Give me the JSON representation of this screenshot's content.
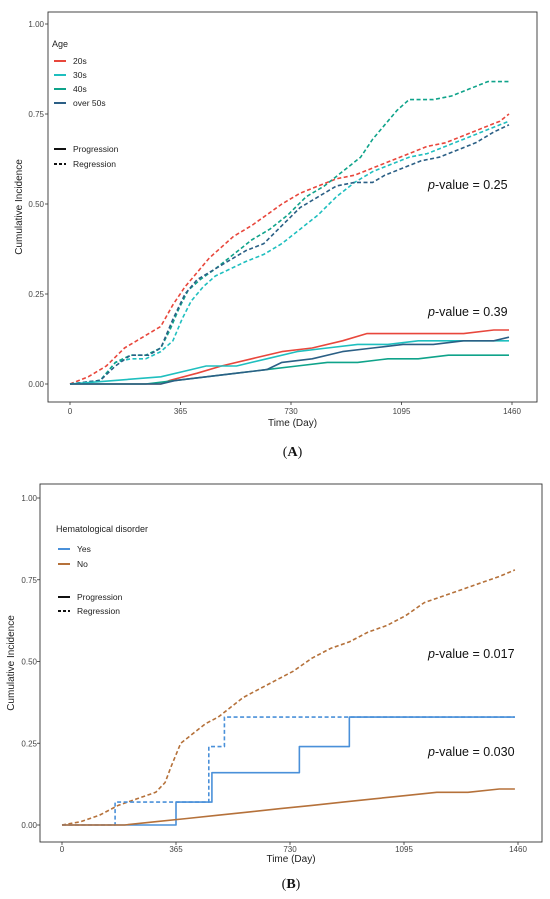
{
  "chart_data": [
    {
      "type": "line",
      "panel_label": "A",
      "xlabel": "Time (Day)",
      "ylabel": "Cumulative Incidence",
      "xlim": [
        0,
        1460
      ],
      "ylim": [
        0,
        1
      ],
      "xticks": [
        "0",
        "365",
        "730",
        "1095",
        "1460"
      ],
      "yticks": [
        "0.00",
        "0.25",
        "0.50",
        "0.75",
        "1.00"
      ],
      "grid": false,
      "legend": {
        "placement": "top-left",
        "title": "Age",
        "groups": [
          {
            "name": "20s",
            "color": "#e8473c"
          },
          {
            "name": "30s",
            "color": "#1fbfbf"
          },
          {
            "name": "40s",
            "color": "#0fa38a"
          },
          {
            "name": "over 50s",
            "color": "#2b5f85"
          }
        ],
        "linetypes": [
          {
            "name": "Progression",
            "dash": "solid"
          },
          {
            "name": "Regression",
            "dash": "dashed"
          }
        ]
      },
      "annotations": [
        {
          "text_italic": "p",
          "text_rest": "-value = 0.25",
          "x": 1300,
          "y": 0.55
        },
        {
          "text_italic": "p",
          "text_rest": "-value = 0.39",
          "x": 1300,
          "y": 0.2
        }
      ],
      "series": [
        {
          "group": "20s",
          "type": "Regression",
          "color": "#e8473c",
          "dash": "dashed",
          "points": [
            [
              0,
              0
            ],
            [
              60,
              0.02
            ],
            [
              120,
              0.05
            ],
            [
              180,
              0.1
            ],
            [
              240,
              0.13
            ],
            [
              300,
              0.16
            ],
            [
              340,
              0.22
            ],
            [
              380,
              0.27
            ],
            [
              420,
              0.31
            ],
            [
              460,
              0.35
            ],
            [
              500,
              0.38
            ],
            [
              540,
              0.41
            ],
            [
              600,
              0.44
            ],
            [
              650,
              0.47
            ],
            [
              700,
              0.5
            ],
            [
              760,
              0.53
            ],
            [
              820,
              0.55
            ],
            [
              880,
              0.57
            ],
            [
              940,
              0.58
            ],
            [
              1000,
              0.6
            ],
            [
              1060,
              0.62
            ],
            [
              1120,
              0.64
            ],
            [
              1180,
              0.66
            ],
            [
              1240,
              0.67
            ],
            [
              1300,
              0.69
            ],
            [
              1360,
              0.71
            ],
            [
              1420,
              0.73
            ],
            [
              1450,
              0.75
            ]
          ]
        },
        {
          "group": "30s",
          "type": "Regression",
          "color": "#1fbfbf",
          "dash": "dashed",
          "points": [
            [
              0,
              0
            ],
            [
              100,
              0.01
            ],
            [
              150,
              0.06
            ],
            [
              200,
              0.07
            ],
            [
              250,
              0.07
            ],
            [
              300,
              0.09
            ],
            [
              340,
              0.12
            ],
            [
              370,
              0.18
            ],
            [
              400,
              0.23
            ],
            [
              440,
              0.27
            ],
            [
              480,
              0.3
            ],
            [
              530,
              0.32
            ],
            [
              580,
              0.34
            ],
            [
              640,
              0.36
            ],
            [
              700,
              0.39
            ],
            [
              760,
              0.43
            ],
            [
              820,
              0.47
            ],
            [
              880,
              0.52
            ],
            [
              940,
              0.56
            ],
            [
              1000,
              0.59
            ],
            [
              1060,
              0.61
            ],
            [
              1120,
              0.63
            ],
            [
              1180,
              0.64
            ],
            [
              1240,
              0.66
            ],
            [
              1300,
              0.68
            ],
            [
              1360,
              0.7
            ],
            [
              1420,
              0.72
            ],
            [
              1450,
              0.73
            ]
          ]
        },
        {
          "group": "40s",
          "type": "Regression",
          "color": "#0fa38a",
          "dash": "dashed",
          "points": [
            [
              0,
              0
            ],
            [
              100,
              0.01
            ],
            [
              150,
              0.06
            ],
            [
              200,
              0.08
            ],
            [
              250,
              0.08
            ],
            [
              300,
              0.1
            ],
            [
              330,
              0.15
            ],
            [
              360,
              0.21
            ],
            [
              390,
              0.26
            ],
            [
              430,
              0.29
            ],
            [
              480,
              0.32
            ],
            [
              540,
              0.36
            ],
            [
              600,
              0.4
            ],
            [
              660,
              0.43
            ],
            [
              720,
              0.47
            ],
            [
              780,
              0.52
            ],
            [
              840,
              0.55
            ],
            [
              900,
              0.59
            ],
            [
              960,
              0.63
            ],
            [
              1000,
              0.68
            ],
            [
              1040,
              0.72
            ],
            [
              1080,
              0.76
            ],
            [
              1120,
              0.79
            ],
            [
              1200,
              0.79
            ],
            [
              1260,
              0.8
            ],
            [
              1320,
              0.82
            ],
            [
              1380,
              0.84
            ],
            [
              1450,
              0.84
            ]
          ]
        },
        {
          "group": "over 50s",
          "type": "Regression",
          "color": "#2b5f85",
          "dash": "dashed",
          "points": [
            [
              0,
              0
            ],
            [
              100,
              0.01
            ],
            [
              150,
              0.05
            ],
            [
              200,
              0.08
            ],
            [
              260,
              0.08
            ],
            [
              300,
              0.1
            ],
            [
              340,
              0.18
            ],
            [
              380,
              0.25
            ],
            [
              420,
              0.29
            ],
            [
              460,
              0.31
            ],
            [
              520,
              0.34
            ],
            [
              580,
              0.37
            ],
            [
              640,
              0.39
            ],
            [
              700,
              0.44
            ],
            [
              760,
              0.49
            ],
            [
              820,
              0.52
            ],
            [
              880,
              0.55
            ],
            [
              940,
              0.56
            ],
            [
              1000,
              0.56
            ],
            [
              1040,
              0.58
            ],
            [
              1100,
              0.6
            ],
            [
              1160,
              0.62
            ],
            [
              1220,
              0.63
            ],
            [
              1280,
              0.65
            ],
            [
              1340,
              0.67
            ],
            [
              1400,
              0.7
            ],
            [
              1450,
              0.72
            ]
          ]
        },
        {
          "group": "20s",
          "type": "Progression",
          "color": "#e8473c",
          "dash": "solid",
          "points": [
            [
              0,
              0
            ],
            [
              300,
              0
            ],
            [
              330,
              0.01
            ],
            [
              420,
              0.03
            ],
            [
              500,
              0.05
            ],
            [
              600,
              0.07
            ],
            [
              700,
              0.09
            ],
            [
              800,
              0.1
            ],
            [
              900,
              0.12
            ],
            [
              980,
              0.14
            ],
            [
              1100,
              0.14
            ],
            [
              1180,
              0.14
            ],
            [
              1300,
              0.14
            ],
            [
              1400,
              0.15
            ],
            [
              1450,
              0.15
            ]
          ]
        },
        {
          "group": "30s",
          "type": "Progression",
          "color": "#1fbfbf",
          "dash": "solid",
          "points": [
            [
              0,
              0
            ],
            [
              150,
              0.01
            ],
            [
              300,
              0.02
            ],
            [
              400,
              0.04
            ],
            [
              450,
              0.05
            ],
            [
              550,
              0.05
            ],
            [
              650,
              0.07
            ],
            [
              750,
              0.09
            ],
            [
              850,
              0.1
            ],
            [
              950,
              0.11
            ],
            [
              1050,
              0.11
            ],
            [
              1150,
              0.12
            ],
            [
              1250,
              0.12
            ],
            [
              1350,
              0.12
            ],
            [
              1450,
              0.12
            ]
          ]
        },
        {
          "group": "40s",
          "type": "Progression",
          "color": "#0fa38a",
          "dash": "solid",
          "points": [
            [
              0,
              0
            ],
            [
              250,
              0
            ],
            [
              350,
              0.01
            ],
            [
              450,
              0.02
            ],
            [
              550,
              0.03
            ],
            [
              650,
              0.04
            ],
            [
              750,
              0.05
            ],
            [
              850,
              0.06
            ],
            [
              950,
              0.06
            ],
            [
              1050,
              0.07
            ],
            [
              1150,
              0.07
            ],
            [
              1250,
              0.08
            ],
            [
              1350,
              0.08
            ],
            [
              1450,
              0.08
            ]
          ]
        },
        {
          "group": "over 50s",
          "type": "Progression",
          "color": "#2b5f85",
          "dash": "solid",
          "points": [
            [
              0,
              0
            ],
            [
              300,
              0
            ],
            [
              350,
              0.01
            ],
            [
              450,
              0.02
            ],
            [
              550,
              0.03
            ],
            [
              650,
              0.04
            ],
            [
              700,
              0.06
            ],
            [
              800,
              0.07
            ],
            [
              900,
              0.09
            ],
            [
              1000,
              0.1
            ],
            [
              1100,
              0.11
            ],
            [
              1200,
              0.11
            ],
            [
              1300,
              0.12
            ],
            [
              1400,
              0.12
            ],
            [
              1450,
              0.13
            ]
          ]
        }
      ]
    },
    {
      "type": "line",
      "panel_label": "B",
      "xlabel": "Time (Day)",
      "ylabel": "Cumulative Incidence",
      "xlim": [
        0,
        1460
      ],
      "ylim": [
        0,
        1
      ],
      "xticks": [
        "0",
        "365",
        "730",
        "1095",
        "1460"
      ],
      "yticks": [
        "0.00",
        "0.25",
        "0.50",
        "0.75",
        "1.00"
      ],
      "grid": false,
      "legend": {
        "placement": "top-left",
        "title": "Hematological disorder",
        "groups": [
          {
            "name": "Yes",
            "color": "#4a90d9"
          },
          {
            "name": "No",
            "color": "#b5713a"
          }
        ],
        "linetypes": [
          {
            "name": "Progression",
            "dash": "solid"
          },
          {
            "name": "Regression",
            "dash": "dashed"
          }
        ]
      },
      "annotations": [
        {
          "text_italic": "p",
          "text_rest": "-value = 0.017",
          "x": 1300,
          "y": 0.47
        },
        {
          "text_italic": "p",
          "text_rest": "-value = 0.030",
          "x": 1300,
          "y": 0.24
        }
      ],
      "series": [
        {
          "group": "No",
          "type": "Regression",
          "color": "#b5713a",
          "dash": "dashed",
          "points": [
            [
              0,
              0
            ],
            [
              60,
              0.01
            ],
            [
              120,
              0.03
            ],
            [
              180,
              0.06
            ],
            [
              240,
              0.08
            ],
            [
              300,
              0.1
            ],
            [
              330,
              0.13
            ],
            [
              350,
              0.18
            ],
            [
              380,
              0.25
            ],
            [
              420,
              0.28
            ],
            [
              460,
              0.31
            ],
            [
              500,
              0.33
            ],
            [
              540,
              0.36
            ],
            [
              580,
              0.39
            ],
            [
              620,
              0.41
            ],
            [
              680,
              0.44
            ],
            [
              740,
              0.47
            ],
            [
              800,
              0.51
            ],
            [
              860,
              0.54
            ],
            [
              920,
              0.56
            ],
            [
              980,
              0.59
            ],
            [
              1040,
              0.61
            ],
            [
              1100,
              0.64
            ],
            [
              1160,
              0.68
            ],
            [
              1220,
              0.7
            ],
            [
              1280,
              0.72
            ],
            [
              1340,
              0.74
            ],
            [
              1400,
              0.76
            ],
            [
              1450,
              0.78
            ]
          ]
        },
        {
          "group": "Yes",
          "type": "Regression",
          "color": "#4a90d9",
          "dash": "dashed",
          "steps": [
            [
              0,
              0
            ],
            [
              170,
              0.07
            ],
            [
              470,
              0.24
            ],
            [
              520,
              0.33
            ],
            [
              1450,
              0.33
            ]
          ]
        },
        {
          "group": "Yes",
          "type": "Progression",
          "color": "#4a90d9",
          "dash": "solid",
          "steps": [
            [
              0,
              0
            ],
            [
              365,
              0.07
            ],
            [
              480,
              0.16
            ],
            [
              760,
              0.24
            ],
            [
              920,
              0.33
            ],
            [
              1450,
              0.33
            ]
          ]
        },
        {
          "group": "No",
          "type": "Progression",
          "color": "#b5713a",
          "dash": "solid",
          "points": [
            [
              0,
              0
            ],
            [
              200,
              0
            ],
            [
              300,
              0.01
            ],
            [
              400,
              0.02
            ],
            [
              500,
              0.03
            ],
            [
              600,
              0.04
            ],
            [
              700,
              0.05
            ],
            [
              800,
              0.06
            ],
            [
              900,
              0.07
            ],
            [
              1000,
              0.08
            ],
            [
              1100,
              0.09
            ],
            [
              1200,
              0.1
            ],
            [
              1300,
              0.1
            ],
            [
              1400,
              0.11
            ],
            [
              1450,
              0.11
            ]
          ]
        }
      ]
    }
  ]
}
